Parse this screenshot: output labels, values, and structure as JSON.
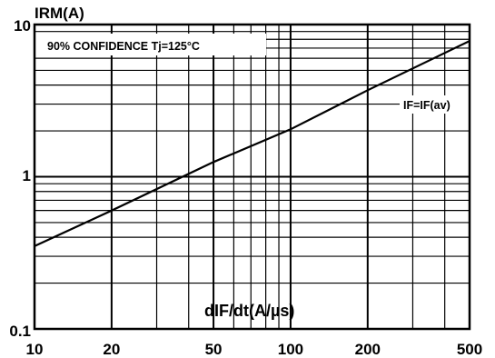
{
  "chart_data": {
    "type": "line",
    "x_scale": "log",
    "y_scale": "log",
    "xlabel": "dIF/dt(A/µs)",
    "ylabel": "IRM(A)",
    "xlim": [
      10,
      500
    ],
    "ylim": [
      0.1,
      10
    ],
    "x_ticks": [
      "10",
      "20",
      "50",
      "100",
      "200",
      "500"
    ],
    "y_ticks": [
      "10",
      "1",
      "0.1"
    ],
    "annotations": [
      "90% CONFIDENCE Tj=125°C"
    ],
    "grid": true,
    "series": [
      {
        "name": "IF=IF(av)",
        "x": [
          10,
          20,
          50,
          100,
          200,
          500
        ],
        "y": [
          0.35,
          0.6,
          1.25,
          2.05,
          3.7,
          7.8
        ]
      }
    ]
  }
}
